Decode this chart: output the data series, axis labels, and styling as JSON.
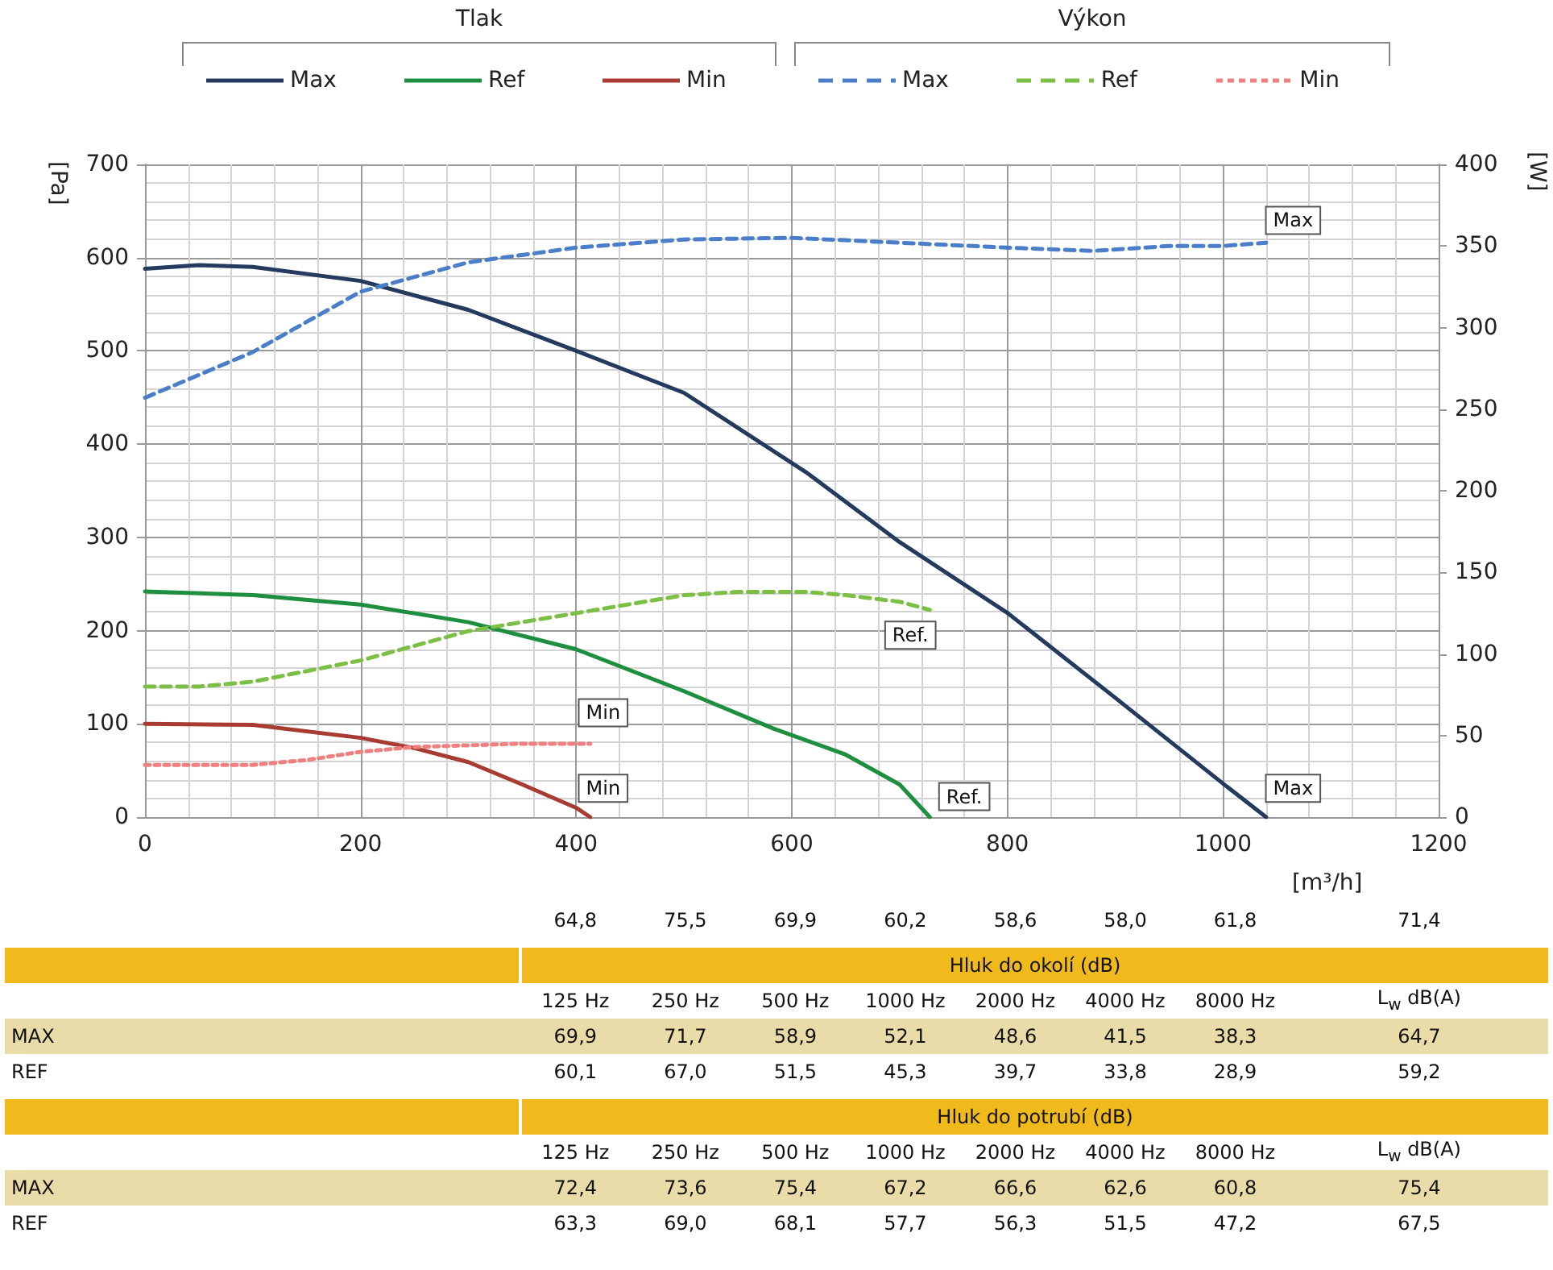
{
  "chart_data": [
    {
      "type": "line",
      "xlabel": "[m³/h]",
      "ylabel": "[Pa]",
      "y2label": "[W]",
      "xlim": [
        0,
        1200
      ],
      "xticks": [
        0,
        200,
        400,
        600,
        800,
        1000,
        1200
      ],
      "ylim": [
        0,
        700
      ],
      "yticks": [
        0,
        100,
        200,
        300,
        400,
        500,
        600,
        700
      ],
      "y2lim": [
        0,
        400
      ],
      "y2ticks": [
        0,
        50,
        100,
        150,
        200,
        250,
        300,
        350,
        400
      ],
      "grid": true,
      "legend": "top",
      "marker": "none",
      "series": [
        {
          "name": "Max",
          "color": "#243a5e",
          "line_style": "solid",
          "x": [
            0,
            50,
            100,
            200,
            300,
            400,
            500,
            613,
            700,
            800,
            900,
            1000,
            1040
          ],
          "values": [
            588,
            592,
            590,
            575,
            544,
            500,
            455,
            370,
            295,
            219,
            128,
            36,
            0
          ]
        },
        {
          "name": "Ref",
          "color": "#1e8f3e",
          "line_style": "solid",
          "x": [
            0,
            100,
            200,
            300,
            400,
            500,
            583,
            650,
            700,
            728
          ],
          "values": [
            242,
            238,
            228,
            209,
            180,
            135,
            95,
            67,
            35,
            0
          ]
        },
        {
          "name": "Min",
          "color": "#a83b32",
          "line_style": "solid",
          "x": [
            0,
            100,
            200,
            250,
            300,
            350,
            400,
            413
          ],
          "values": [
            100,
            99,
            85,
            74,
            59,
            35,
            10,
            0
          ]
        },
        {
          "name": "Max",
          "color": "#4a7ec8",
          "line_style": "dashed",
          "axis": "y2",
          "x": [
            0,
            100,
            200,
            300,
            400,
            500,
            600,
            700,
            800,
            880,
            950,
            1000,
            1040
          ],
          "values": [
            257,
            285,
            322,
            340,
            349,
            354,
            355,
            352,
            349,
            347,
            350,
            350,
            352
          ]
        },
        {
          "name": "Ref",
          "color": "#7cbf45",
          "line_style": "dashed",
          "axis": "y2",
          "x": [
            0,
            50,
            100,
            200,
            300,
            400,
            500,
            550,
            613,
            650,
            700,
            728
          ],
          "values": [
            80,
            80,
            83,
            96,
            114,
            125,
            136,
            138,
            138,
            136,
            132,
            127
          ]
        },
        {
          "name": "Min",
          "color": "#f08080",
          "line_style": "dotted",
          "axis": "y2",
          "x": [
            0,
            100,
            150,
            200,
            250,
            300,
            350,
            413
          ],
          "values": [
            32,
            32,
            35,
            40,
            43,
            44,
            45,
            45
          ]
        }
      ],
      "annotations": [
        "Tlak",
        "Výkon",
        {
          "text": "Min",
          "x": 425,
          "y": 112
        },
        {
          "text": "Min",
          "x": 425,
          "y": 31
        },
        {
          "text": "Ref.",
          "x": 710,
          "y": 195
        },
        {
          "text": "Ref.",
          "x": 760,
          "y": 22
        },
        {
          "text": "Max",
          "x": 1065,
          "y": 640
        },
        {
          "text": "Max",
          "x": 1065,
          "y": 31
        }
      ]
    },
    {
      "type": "other",
      "series": [
        {
          "values": [
            64.8,
            75.5,
            69.9,
            60.2,
            58.6,
            58.0,
            61.8,
            71.4
          ],
          "value_labels": [
            "64,8",
            "75,5",
            "69,9",
            "60,2",
            "58,6",
            "58,0",
            "61,8",
            "71,4"
          ]
        }
      ]
    },
    {
      "type": "other",
      "title": "Hluk do okolí (dB)",
      "categories": [
        "125 Hz",
        "250 Hz",
        "500 Hz",
        "1000 Hz",
        "2000 Hz",
        "4000 Hz",
        "8000 Hz",
        "L$_{w}$ dB(A)"
      ],
      "series": [
        {
          "name": "MAX",
          "color": "#e9dca8",
          "values": [
            69.9,
            71.7,
            58.9,
            52.1,
            48.6,
            41.5,
            38.3,
            64.7
          ],
          "value_labels": [
            "69,9",
            "71,7",
            "58,9",
            "52,1",
            "48,6",
            "41,5",
            "38,3",
            "64,7"
          ]
        },
        {
          "name": "REF",
          "values": [
            60.1,
            67.0,
            51.5,
            45.3,
            39.7,
            33.8,
            28.9,
            59.2
          ],
          "value_labels": [
            "60,1",
            "67,0",
            "51,5",
            "45,3",
            "39,7",
            "33,8",
            "28,9",
            "59,2"
          ]
        }
      ]
    },
    {
      "type": "other",
      "title": "Hluk do potrubí (dB)",
      "categories": [
        "125 Hz",
        "250 Hz",
        "500 Hz",
        "1000 Hz",
        "2000 Hz",
        "4000 Hz",
        "8000 Hz",
        "L$_{w}$ dB(A)"
      ],
      "series": [
        {
          "name": "MAX",
          "color": "#e9dca8",
          "values": [
            72.4,
            73.6,
            75.4,
            67.2,
            66.6,
            62.6,
            60.8,
            75.4
          ],
          "value_labels": [
            "72,4",
            "73,6",
            "75,4",
            "67,2",
            "66,6",
            "62,6",
            "60,8",
            "75,4"
          ]
        },
        {
          "name": "REF",
          "values": [
            63.3,
            69.0,
            68.1,
            57.7,
            56.3,
            51.5,
            47.2,
            67.5
          ],
          "value_labels": [
            "63,3",
            "69,0",
            "68,1",
            "57,7",
            "56,3",
            "51,5",
            "47,2",
            "67,5"
          ]
        }
      ]
    }
  ]
}
